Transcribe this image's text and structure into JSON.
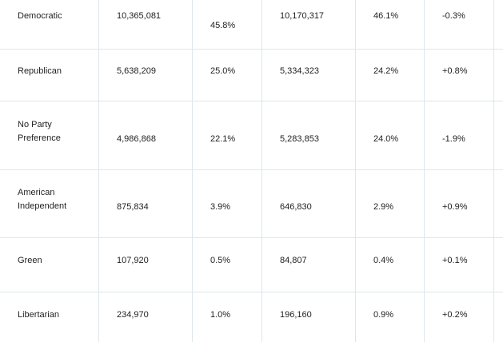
{
  "table": {
    "rows": [
      {
        "party": "Democratic",
        "reg_a": "10,365,081",
        "pct_a": "45.8%",
        "reg_b": "10,170,317",
        "pct_b": "46.1%",
        "change": "-0.3%"
      },
      {
        "party": "Republican",
        "reg_a": "5,638,209",
        "pct_a": "25.0%",
        "reg_b": "5,334,323",
        "pct_b": "24.2%",
        "change": "+0.8%"
      },
      {
        "party": "No Party\nPreference",
        "reg_a": "4,986,868",
        "pct_a": "22.1%",
        "reg_b": "5,283,853",
        "pct_b": "24.0%",
        "change": "-1.9%"
      },
      {
        "party": "American\nIndependent",
        "reg_a": "875,834",
        "pct_a": "3.9%",
        "reg_b": "646,830",
        "pct_b": "2.9%",
        "change": "+0.9%"
      },
      {
        "party": "Green",
        "reg_a": "107,920",
        "pct_a": "0.5%",
        "reg_b": "84,807",
        "pct_b": "0.4%",
        "change": "+0.1%"
      },
      {
        "party": "Libertarian",
        "reg_a": "234,970",
        "pct_a": "1.0%",
        "reg_b": "196,160",
        "pct_b": "0.9%",
        "change": "+0.2%"
      }
    ]
  }
}
